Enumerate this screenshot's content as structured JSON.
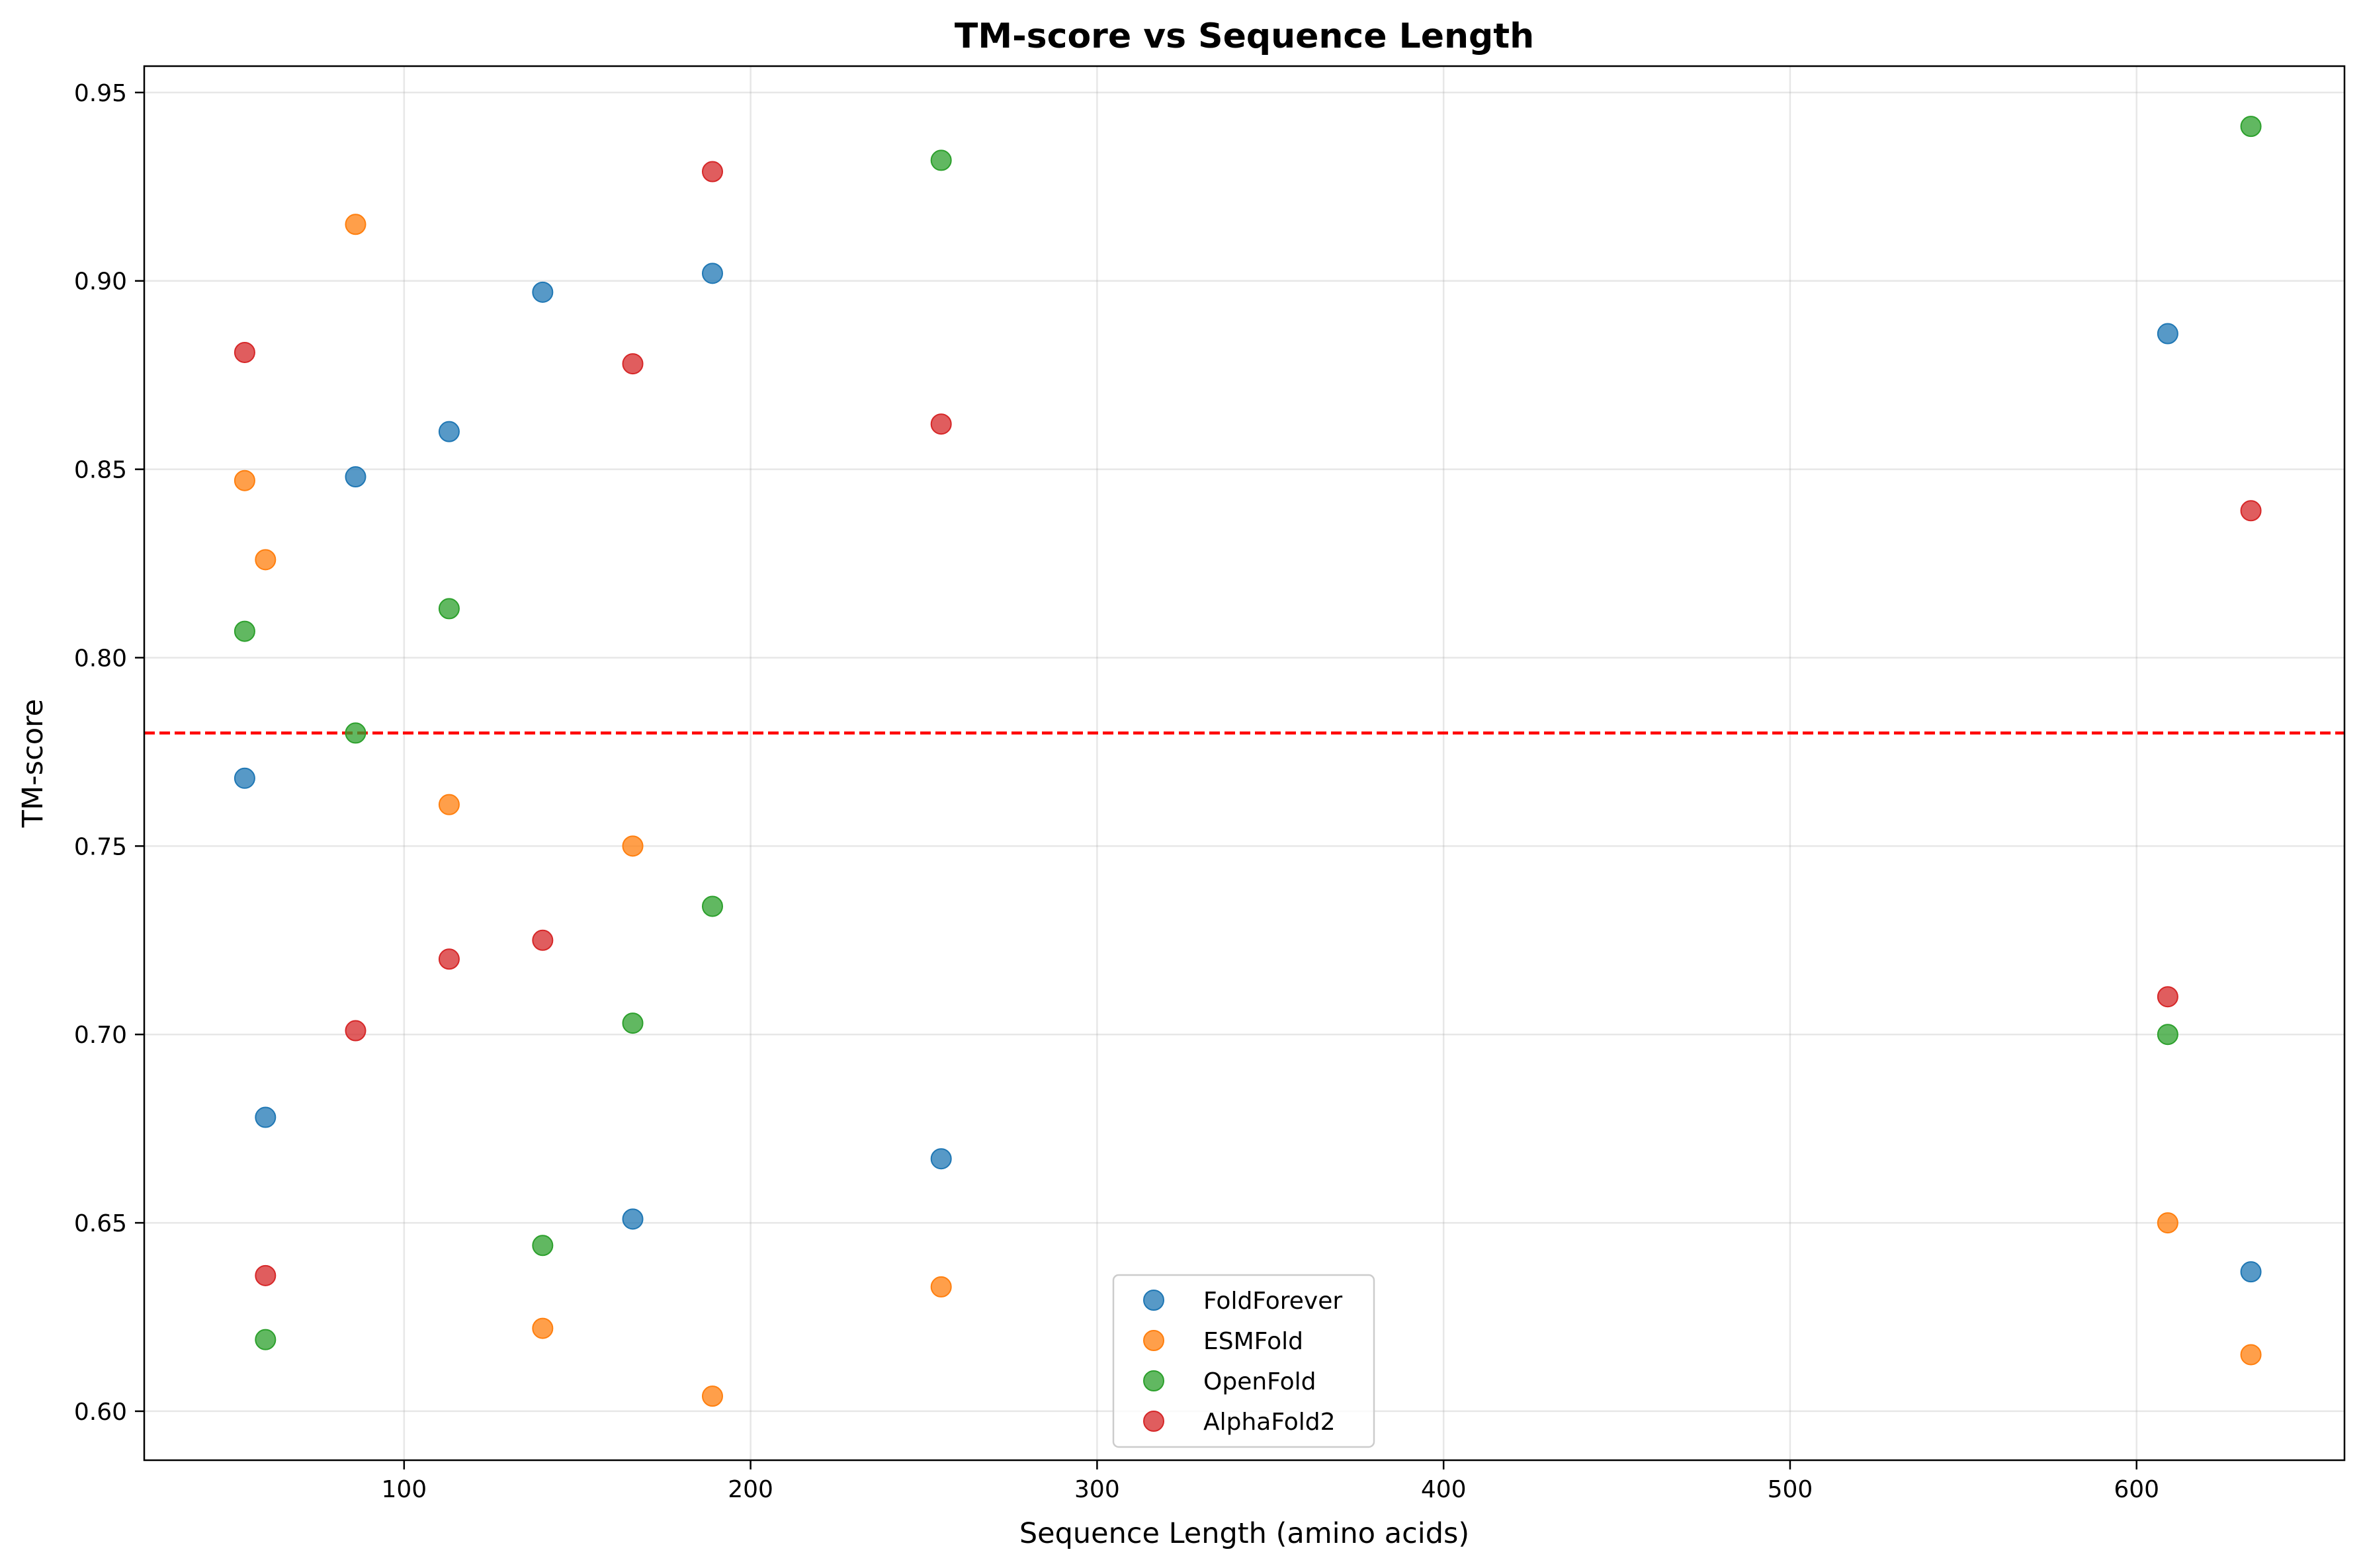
{
  "chart_data": {
    "type": "scatter",
    "title": "TM-score vs Sequence Length",
    "xlabel": "Sequence Length (amino acids)",
    "ylabel": "TM-score",
    "xlim": [
      25,
      660
    ],
    "ylim": [
      0.587,
      0.957
    ],
    "xticks": [
      100,
      200,
      300,
      400,
      500,
      600
    ],
    "xtick_labels": [
      "100",
      "200",
      "300",
      "400",
      "500",
      "600"
    ],
    "yticks": [
      0.6,
      0.65,
      0.7,
      0.75,
      0.8,
      0.85,
      0.9,
      0.95
    ],
    "ytick_labels": [
      "0.60",
      "0.65",
      "0.70",
      "0.75",
      "0.80",
      "0.85",
      "0.90",
      "0.95"
    ],
    "grid": true,
    "legend_position": "bottom-center",
    "reference_line": {
      "y": 0.78,
      "color": "#ff0000",
      "style": "dashed"
    },
    "series": [
      {
        "name": "FoldForever",
        "color": "#1f77b4",
        "points": [
          [
            54,
            0.768
          ],
          [
            60,
            0.678
          ],
          [
            86,
            0.848
          ],
          [
            113,
            0.86
          ],
          [
            140,
            0.897
          ],
          [
            166,
            0.651
          ],
          [
            189,
            0.902
          ],
          [
            255,
            0.667
          ],
          [
            609,
            0.886
          ],
          [
            633,
            0.637
          ]
        ]
      },
      {
        "name": "ESMFold",
        "color": "#ff7f0e",
        "points": [
          [
            54,
            0.847
          ],
          [
            60,
            0.826
          ],
          [
            86,
            0.915
          ],
          [
            113,
            0.761
          ],
          [
            140,
            0.622
          ],
          [
            166,
            0.75
          ],
          [
            189,
            0.604
          ],
          [
            255,
            0.633
          ],
          [
            609,
            0.65
          ],
          [
            633,
            0.615
          ]
        ]
      },
      {
        "name": "OpenFold",
        "color": "#2ca02c",
        "points": [
          [
            54,
            0.807
          ],
          [
            60,
            0.619
          ],
          [
            86,
            0.78
          ],
          [
            113,
            0.813
          ],
          [
            140,
            0.644
          ],
          [
            166,
            0.703
          ],
          [
            189,
            0.734
          ],
          [
            255,
            0.932
          ],
          [
            609,
            0.7
          ],
          [
            633,
            0.941
          ]
        ]
      },
      {
        "name": "AlphaFold2",
        "color": "#d62728",
        "points": [
          [
            54,
            0.881
          ],
          [
            60,
            0.636
          ],
          [
            86,
            0.701
          ],
          [
            113,
            0.72
          ],
          [
            140,
            0.725
          ],
          [
            166,
            0.878
          ],
          [
            189,
            0.929
          ],
          [
            255,
            0.862
          ],
          [
            609,
            0.71
          ],
          [
            633,
            0.839
          ]
        ]
      }
    ]
  }
}
